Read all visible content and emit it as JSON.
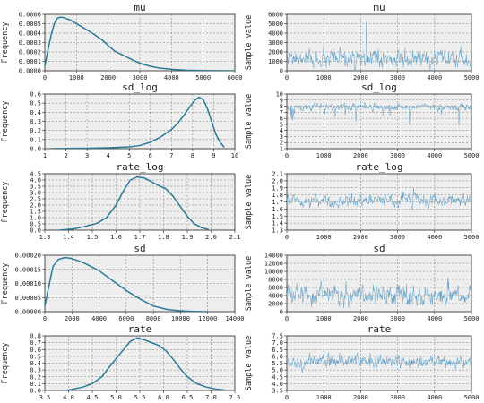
{
  "colors": {
    "kde": "#2b7a98",
    "trace": "#6aa6c9",
    "panel_bg": "#eeeeee",
    "grid": "#666666"
  },
  "chart_data": [
    {
      "type": "line",
      "title": "mu",
      "xlabel": "",
      "ylabel": "Frequency",
      "xlim": [
        0,
        6000
      ],
      "ylim": [
        0,
        0.0006
      ],
      "xticks": [
        "0",
        "1000",
        "2000",
        "3000",
        "4000",
        "5000",
        "6000"
      ],
      "yticks": [
        "0.0000",
        "0.0001",
        "0.0002",
        "0.0003",
        "0.0004",
        "0.0005",
        "0.0006"
      ],
      "x": [
        0,
        100,
        200,
        300,
        400,
        500,
        600,
        800,
        1000,
        1200,
        1500,
        1800,
        2000,
        2200,
        2500,
        2800,
        3000,
        3300,
        3600,
        4000,
        4500,
        5000,
        5500,
        6000
      ],
      "y": [
        5e-05,
        0.00022,
        0.00038,
        0.0005,
        0.00056,
        0.00057,
        0.000565,
        0.00054,
        0.0005,
        0.00046,
        0.0004,
        0.00033,
        0.00027,
        0.00021,
        0.00016,
        0.00011,
        8e-05,
        5e-05,
        3e-05,
        1.5e-05,
        6e-06,
        3e-06,
        1e-06,
        0.0
      ]
    },
    {
      "type": "line",
      "title": "mu",
      "xlabel": "",
      "ylabel": "Sample value",
      "xlim": [
        0,
        5000
      ],
      "ylim": [
        0,
        6000
      ],
      "xticks": [
        "0",
        "1000",
        "2000",
        "3000",
        "4000",
        "5000"
      ],
      "yticks": [
        "0",
        "1000",
        "2000",
        "3000",
        "4000",
        "5000",
        "6000"
      ],
      "trace": {
        "n": 500,
        "center": 1150,
        "spread": 850,
        "min": 0,
        "max": 6000,
        "spike": 5200
      }
    },
    {
      "type": "line",
      "title": "sd_log",
      "xlabel": "",
      "ylabel": "Frequency",
      "xlim": [
        1,
        10
      ],
      "ylim": [
        0,
        0.6
      ],
      "xticks": [
        "1",
        "2",
        "3",
        "4",
        "5",
        "6",
        "7",
        "8",
        "9",
        "10"
      ],
      "yticks": [
        "0.0",
        "0.1",
        "0.2",
        "0.3",
        "0.4",
        "0.5",
        "0.6"
      ],
      "x": [
        1.3,
        2,
        3,
        4,
        5,
        5.5,
        6,
        6.5,
        7,
        7.3,
        7.6,
        7.9,
        8.1,
        8.3,
        8.5,
        8.7,
        8.9,
        9.1,
        9.3,
        9.5
      ],
      "y": [
        0.0,
        0.002,
        0.005,
        0.01,
        0.02,
        0.035,
        0.07,
        0.13,
        0.21,
        0.28,
        0.37,
        0.47,
        0.53,
        0.565,
        0.54,
        0.44,
        0.3,
        0.16,
        0.07,
        0.015
      ]
    },
    {
      "type": "line",
      "title": "sd_log",
      "xlabel": "",
      "ylabel": "Sample value",
      "xlim": [
        0,
        5000
      ],
      "ylim": [
        1,
        10
      ],
      "xticks": [
        "0",
        "1000",
        "2000",
        "3000",
        "4000",
        "5000"
      ],
      "yticks": [
        "1",
        "2",
        "3",
        "4",
        "5",
        "6",
        "7",
        "8",
        "9",
        "10"
      ],
      "trace": {
        "n": 500,
        "center": 7.9,
        "spread": 0.55,
        "min": 3.0,
        "max": 9.4,
        "dips": true
      }
    },
    {
      "type": "line",
      "title": "rate_log",
      "xlabel": "",
      "ylabel": "Frequency",
      "xlim": [
        1.3,
        2.1
      ],
      "ylim": [
        0,
        4.5
      ],
      "xticks": [
        "1.3",
        "1.4",
        "1.5",
        "1.6",
        "1.7",
        "1.8",
        "1.9",
        "2.0",
        "2.1"
      ],
      "yticks": [
        "0.0",
        "0.5",
        "1.0",
        "1.5",
        "2.0",
        "2.5",
        "3.0",
        "3.5",
        "4.0",
        "4.5"
      ],
      "x": [
        1.36,
        1.42,
        1.47,
        1.52,
        1.56,
        1.6,
        1.63,
        1.66,
        1.69,
        1.72,
        1.75,
        1.78,
        1.81,
        1.84,
        1.87,
        1.9,
        1.93,
        1.96,
        1.99
      ],
      "y": [
        0.0,
        0.1,
        0.3,
        0.55,
        1.0,
        2.0,
        3.1,
        4.0,
        4.25,
        4.15,
        3.85,
        3.55,
        3.3,
        2.7,
        1.9,
        1.1,
        0.5,
        0.2,
        0.05
      ]
    },
    {
      "type": "line",
      "title": "rate_log",
      "xlabel": "",
      "ylabel": "Sample value",
      "xlim": [
        0,
        5000
      ],
      "ylim": [
        1.3,
        2.1
      ],
      "xticks": [
        "0",
        "1000",
        "2000",
        "3000",
        "4000",
        "5000"
      ],
      "yticks": [
        "1.3",
        "1.4",
        "1.5",
        "1.6",
        "1.7",
        "1.8",
        "1.9",
        "2.0",
        "2.1"
      ],
      "trace": {
        "n": 500,
        "center": 1.72,
        "spread": 0.085,
        "min": 1.38,
        "max": 2.02
      }
    },
    {
      "type": "line",
      "title": "sd",
      "xlabel": "",
      "ylabel": "Frequency",
      "xlim": [
        0,
        14000
      ],
      "ylim": [
        0,
        0.0002
      ],
      "xticks": [
        "0",
        "2000",
        "4000",
        "6000",
        "8000",
        "10000",
        "12000",
        "14000"
      ],
      "yticks": [
        "0.00000",
        "0.00005",
        "0.00010",
        "0.00015",
        "0.00020"
      ],
      "x": [
        0,
        300,
        600,
        1000,
        1500,
        2000,
        2500,
        3000,
        4000,
        5000,
        6000,
        7000,
        8000,
        9000,
        10000,
        11000,
        12000
      ],
      "y": [
        2e-05,
        9e-05,
        0.00016,
        0.000185,
        0.000192,
        0.000188,
        0.00018,
        0.00017,
        0.000145,
        0.00011,
        7.5e-05,
        4.5e-05,
        2e-05,
        8e-06,
        3e-06,
        1e-06,
        0.0
      ]
    },
    {
      "type": "line",
      "title": "sd",
      "xlabel": "",
      "ylabel": "Sample value",
      "xlim": [
        0,
        5000
      ],
      "ylim": [
        0,
        14000
      ],
      "xticks": [
        "0",
        "1000",
        "2000",
        "3000",
        "4000",
        "5000"
      ],
      "yticks": [
        "0",
        "2000",
        "4000",
        "6000",
        "8000",
        "10000",
        "12000",
        "14000"
      ],
      "trace": {
        "n": 500,
        "center": 4200,
        "spread": 2300,
        "min": 200,
        "max": 12500
      }
    },
    {
      "type": "line",
      "title": "rate",
      "xlabel": "",
      "ylabel": "Frequency",
      "xlim": [
        3.5,
        7.5
      ],
      "ylim": [
        0,
        0.8
      ],
      "xticks": [
        "3.5",
        "4.0",
        "4.5",
        "5.0",
        "5.5",
        "6.0",
        "6.5",
        "7.0",
        "7.5"
      ],
      "yticks": [
        "0.0",
        "0.1",
        "0.2",
        "0.3",
        "0.4",
        "0.5",
        "0.6",
        "0.7",
        "0.8"
      ],
      "x": [
        3.95,
        4.1,
        4.3,
        4.5,
        4.7,
        4.9,
        5.1,
        5.3,
        5.45,
        5.6,
        5.75,
        5.9,
        6.05,
        6.2,
        6.35,
        6.5,
        6.7,
        6.9,
        7.1,
        7.3
      ],
      "y": [
        0.0,
        0.02,
        0.05,
        0.1,
        0.2,
        0.38,
        0.55,
        0.72,
        0.77,
        0.74,
        0.7,
        0.66,
        0.58,
        0.46,
        0.32,
        0.2,
        0.1,
        0.05,
        0.02,
        0.005
      ]
    },
    {
      "type": "line",
      "title": "rate",
      "xlabel": "",
      "ylabel": "Sample value",
      "xlim": [
        0,
        5000
      ],
      "ylim": [
        3.5,
        7.5
      ],
      "xticks": [
        "0",
        "1000",
        "2000",
        "3000",
        "4000",
        "5000"
      ],
      "yticks": [
        "3.5",
        "4.0",
        "4.5",
        "5.0",
        "5.5",
        "6.0",
        "6.5",
        "7.0",
        "7.5"
      ],
      "trace": {
        "n": 500,
        "center": 5.6,
        "spread": 0.45,
        "min": 4.0,
        "max": 7.2
      }
    }
  ]
}
